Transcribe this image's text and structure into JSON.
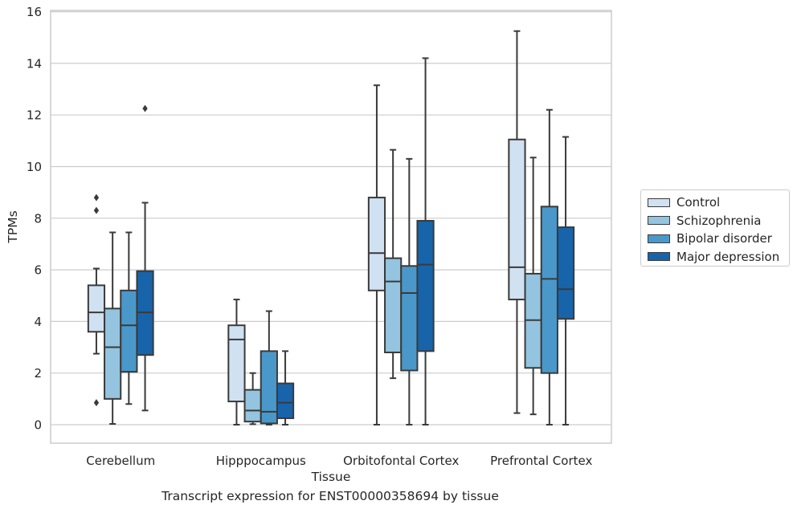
{
  "chart_data": {
    "type": "box",
    "title": "",
    "xlabel": "Tissue",
    "ylabel": "TPMs",
    "ylim": [
      -0.7,
      16.1
    ],
    "yticks": [
      0,
      2,
      4,
      6,
      8,
      10,
      12,
      14,
      16
    ],
    "grid": true,
    "legend_position": "right",
    "categories": [
      "Cerebellum",
      "Hipppocampus",
      "Orbitofontal Cortex",
      "Prefrontal Cortex"
    ],
    "series": [
      {
        "name": "Control",
        "color": "#d0e1f2",
        "boxes": [
          {
            "whislo": 2.75,
            "q1": 3.6,
            "med": 4.35,
            "q3": 5.4,
            "whishi": 6.05,
            "fliers": [
              8.8,
              8.3,
              0.85
            ]
          },
          {
            "whislo": 0.0,
            "q1": 0.9,
            "med": 3.3,
            "q3": 3.85,
            "whishi": 4.85,
            "fliers": []
          },
          {
            "whislo": 0.0,
            "q1": 5.2,
            "med": 6.65,
            "q3": 8.8,
            "whishi": 13.15,
            "fliers": []
          },
          {
            "whislo": 0.45,
            "q1": 4.85,
            "med": 6.1,
            "q3": 11.05,
            "whishi": 15.25,
            "fliers": []
          }
        ]
      },
      {
        "name": "Schizophrenia",
        "color": "#94c4df",
        "boxes": [
          {
            "whislo": 0.03,
            "q1": 1.0,
            "med": 3.0,
            "q3": 4.5,
            "whishi": 7.45,
            "fliers": []
          },
          {
            "whislo": 0.02,
            "q1": 0.12,
            "med": 0.55,
            "q3": 1.35,
            "whishi": 2.0,
            "fliers": []
          },
          {
            "whislo": 1.8,
            "q1": 2.8,
            "med": 5.55,
            "q3": 6.45,
            "whishi": 10.65,
            "fliers": []
          },
          {
            "whislo": 0.4,
            "q1": 2.2,
            "med": 4.05,
            "q3": 5.85,
            "whishi": 10.35,
            "fliers": []
          }
        ]
      },
      {
        "name": "Bipolar disorder",
        "color": "#4a98c9",
        "boxes": [
          {
            "whislo": 0.8,
            "q1": 2.05,
            "med": 3.85,
            "q3": 5.2,
            "whishi": 7.45,
            "fliers": []
          },
          {
            "whislo": 0.0,
            "q1": 0.05,
            "med": 0.5,
            "q3": 2.85,
            "whishi": 4.4,
            "fliers": []
          },
          {
            "whislo": 0.0,
            "q1": 2.1,
            "med": 5.1,
            "q3": 6.15,
            "whishi": 10.3,
            "fliers": []
          },
          {
            "whislo": 0.0,
            "q1": 2.0,
            "med": 5.65,
            "q3": 8.45,
            "whishi": 12.2,
            "fliers": []
          }
        ]
      },
      {
        "name": "Major depression",
        "color": "#1764ab",
        "boxes": [
          {
            "whislo": 0.55,
            "q1": 2.7,
            "med": 4.35,
            "q3": 5.95,
            "whishi": 8.6,
            "fliers": [
              12.25
            ]
          },
          {
            "whislo": 0.0,
            "q1": 0.25,
            "med": 0.85,
            "q3": 1.6,
            "whishi": 2.85,
            "fliers": []
          },
          {
            "whislo": 0.0,
            "q1": 2.85,
            "med": 6.2,
            "q3": 7.9,
            "whishi": 14.2,
            "fliers": []
          },
          {
            "whislo": 0.0,
            "q1": 4.1,
            "med": 5.25,
            "q3": 7.65,
            "whishi": 11.15,
            "fliers": []
          }
        ]
      }
    ]
  },
  "footer": {
    "caption": "Transcript expression for ENST00000358694 by tissue"
  }
}
